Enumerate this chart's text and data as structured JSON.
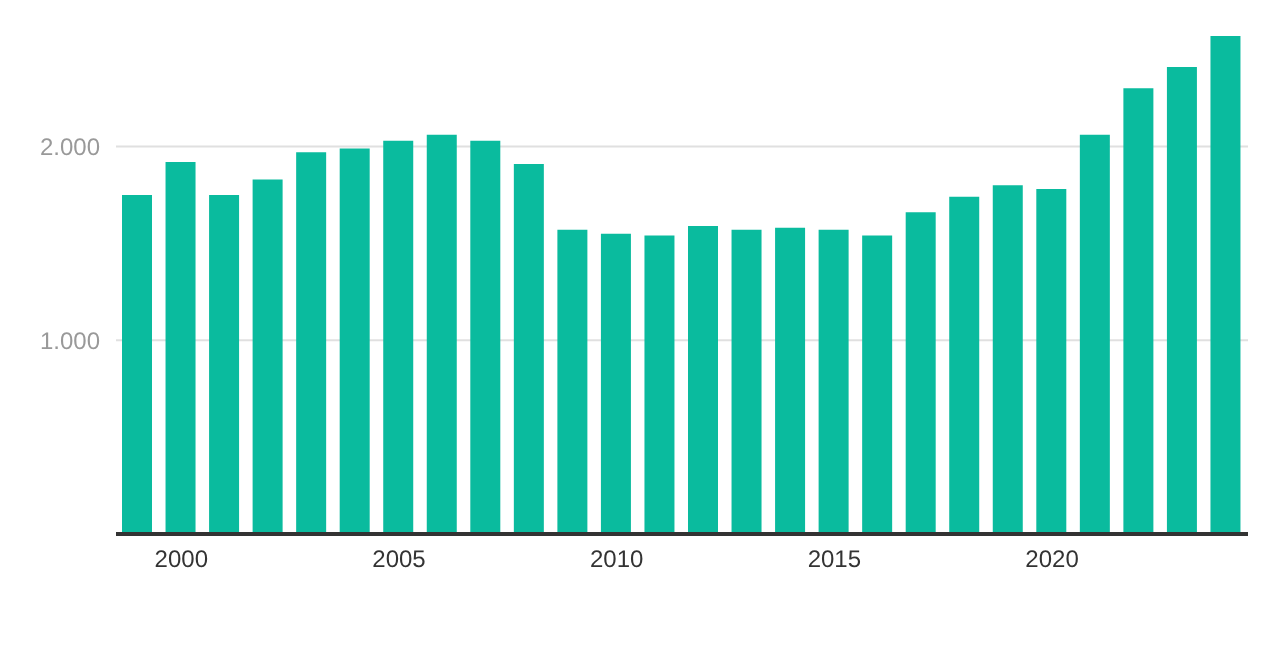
{
  "chart_data": {
    "type": "bar",
    "x": [
      1999,
      2000,
      2001,
      2002,
      2003,
      2004,
      2005,
      2006,
      2007,
      2008,
      2009,
      2010,
      2011,
      2012,
      2013,
      2014,
      2015,
      2016,
      2017,
      2018,
      2019,
      2020,
      2021,
      2022,
      2023,
      2024
    ],
    "values": [
      1750,
      1920,
      1750,
      1830,
      1970,
      1990,
      2030,
      2060,
      2030,
      1910,
      1570,
      1550,
      1540,
      1590,
      1570,
      1580,
      1570,
      1540,
      1660,
      1740,
      1800,
      1780,
      2060,
      2300,
      2410,
      2570
    ],
    "color": "#0abb9e",
    "xlim": [
      1998.5,
      2024.5
    ],
    "xticks": [
      2000,
      2005,
      2010,
      2015,
      2020
    ],
    "ylim": [
      0,
      2570
    ],
    "yticks": [
      {
        "value": 1000,
        "label": "1.000"
      },
      {
        "value": 2000,
        "label": "2.000"
      }
    ],
    "grid": "y",
    "legend": false
  }
}
